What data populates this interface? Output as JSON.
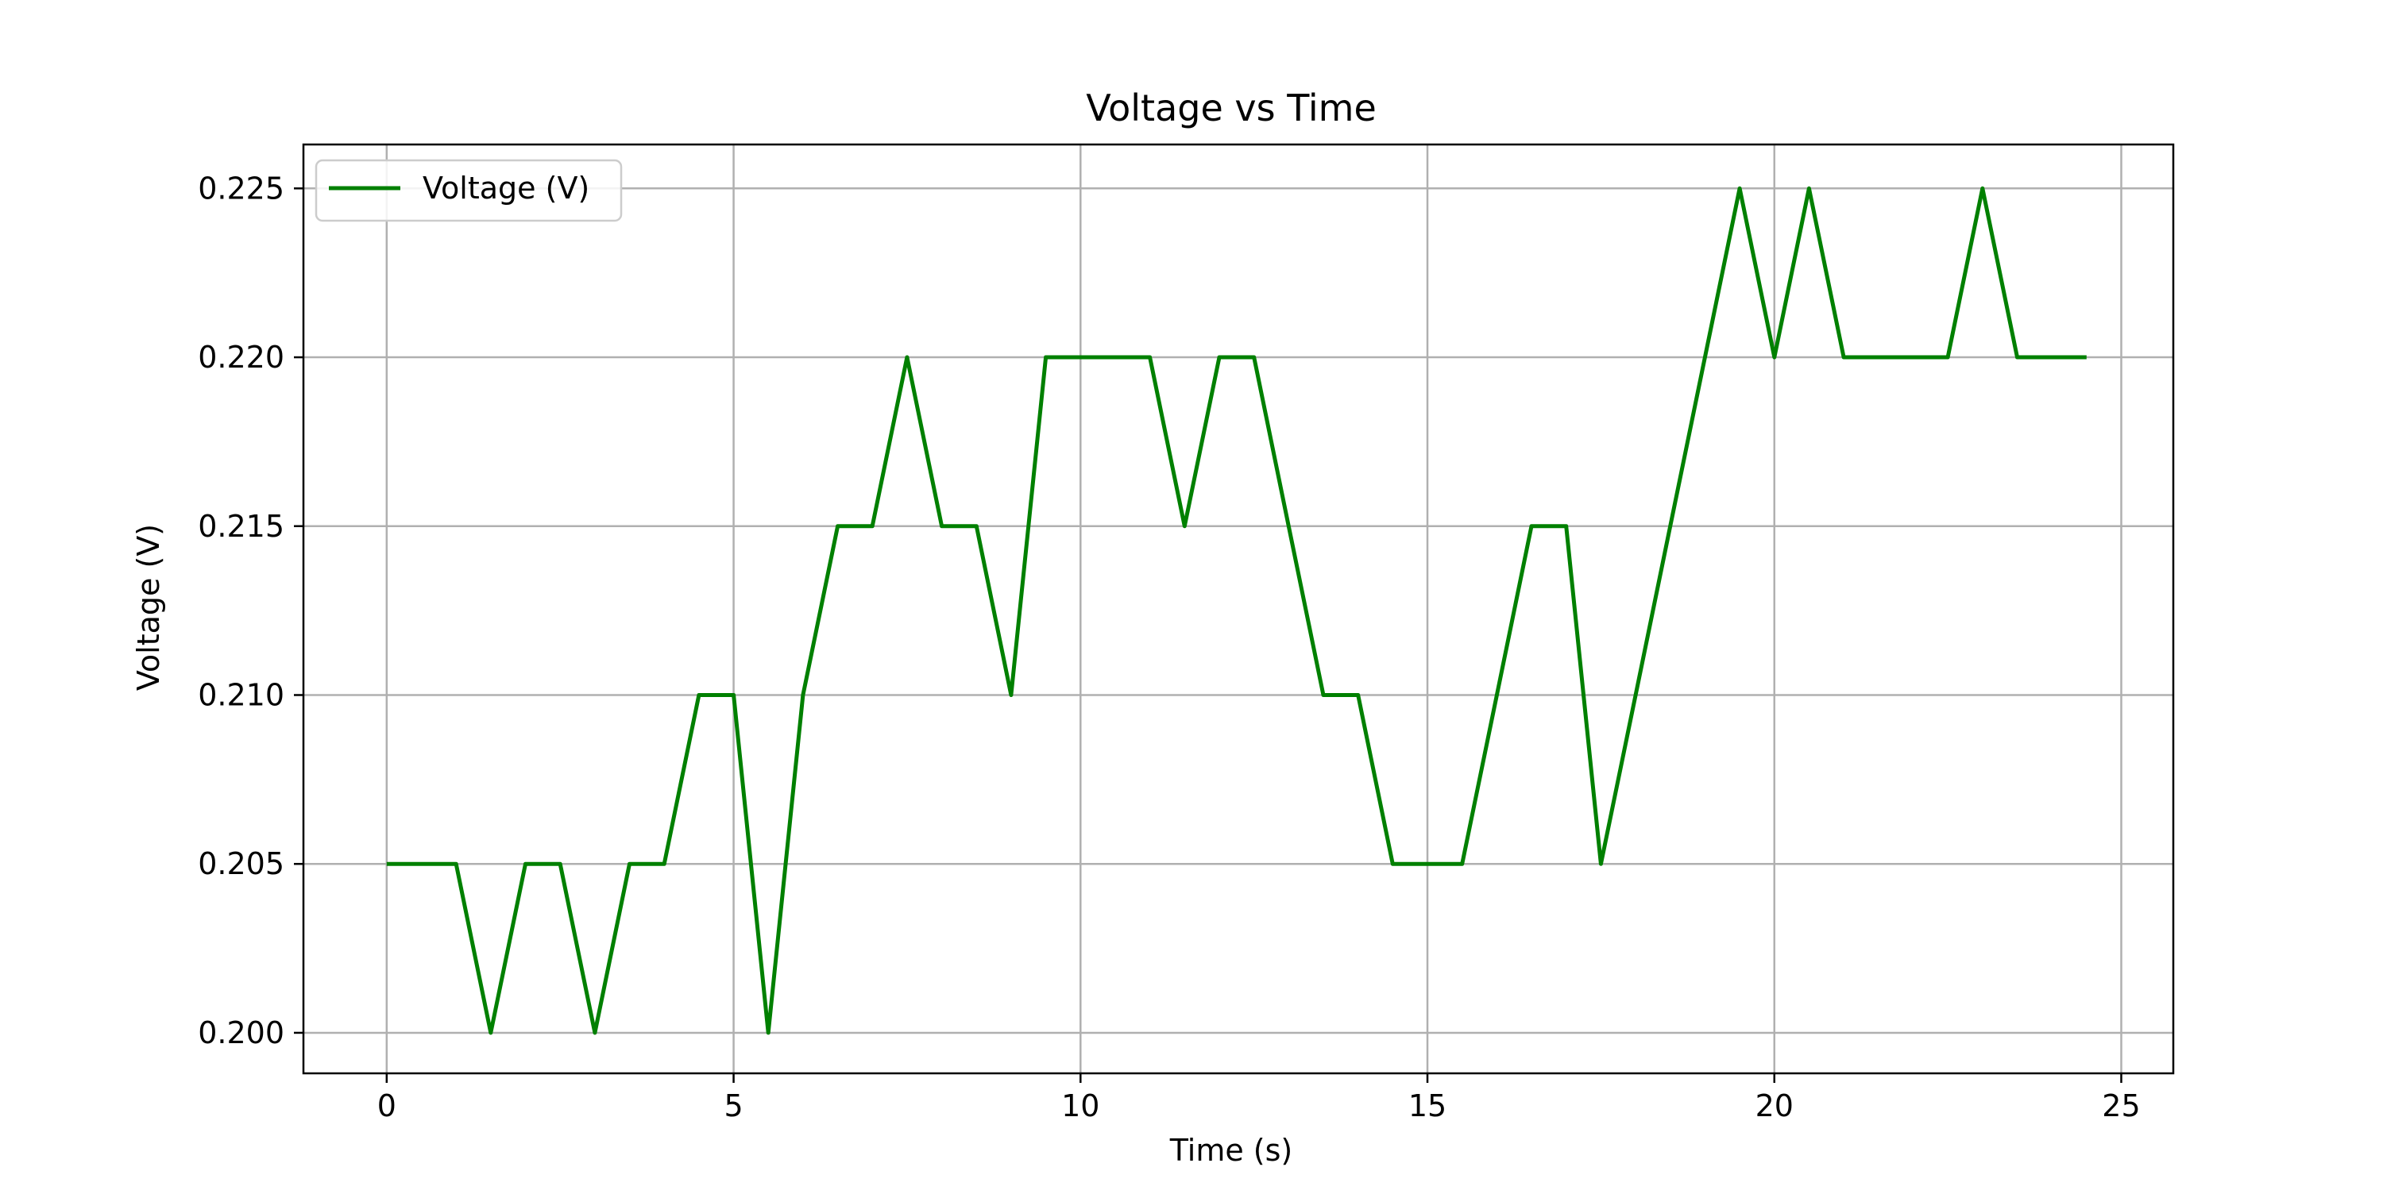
{
  "chart_data": {
    "type": "line",
    "title": "Voltage vs Time",
    "xlabel": "Time (s)",
    "ylabel": "Voltage (V)",
    "xlim": [
      -1.2,
      25.75
    ],
    "ylim": [
      0.1988,
      0.2263
    ],
    "xticks": [
      0,
      5,
      10,
      15,
      20,
      25
    ],
    "xtick_labels": [
      "0",
      "5",
      "10",
      "15",
      "20",
      "25"
    ],
    "yticks": [
      0.2,
      0.205,
      0.21,
      0.215,
      0.22,
      0.225
    ],
    "ytick_labels": [
      "0.200",
      "0.205",
      "0.210",
      "0.215",
      "0.220",
      "0.225"
    ],
    "grid": true,
    "legend": "top-left",
    "series": [
      {
        "name": "Voltage (V)",
        "color": "#008000",
        "x": [
          0,
          0.5,
          1,
          1.5,
          2,
          2.5,
          3,
          3.5,
          4,
          4.5,
          5,
          5.5,
          6,
          6.5,
          7,
          7.5,
          8,
          8.5,
          9,
          9.5,
          10,
          10.5,
          11,
          11.5,
          12,
          12.5,
          13,
          13.5,
          14,
          14.5,
          15,
          15.5,
          16,
          16.5,
          17,
          17.5,
          18,
          18.5,
          19,
          19.5,
          20,
          20.5,
          21,
          21.5,
          22,
          22.5,
          23,
          23.5,
          24,
          24.5
        ],
        "y": [
          0.205,
          0.205,
          0.205,
          0.2,
          0.205,
          0.205,
          0.2,
          0.205,
          0.205,
          0.21,
          0.21,
          0.2,
          0.21,
          0.215,
          0.215,
          0.22,
          0.215,
          0.215,
          0.21,
          0.22,
          0.22,
          0.22,
          0.22,
          0.215,
          0.22,
          0.22,
          0.215,
          0.21,
          0.21,
          0.205,
          0.205,
          0.205,
          0.21,
          0.215,
          0.215,
          0.205,
          0.21,
          0.215,
          0.22,
          0.225,
          0.22,
          0.225,
          0.22,
          0.22,
          0.22,
          0.22,
          0.225,
          0.22,
          0.22,
          0.22
        ]
      }
    ]
  }
}
